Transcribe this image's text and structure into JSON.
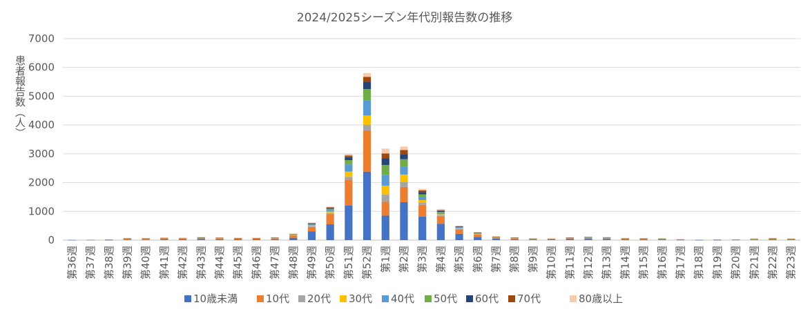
{
  "chart_data": {
    "type": "bar",
    "stacked": true,
    "title": "2024/2025シーズン年代別報告数の推移",
    "xlabel": "",
    "ylabel": "患者報告数（人）",
    "ylim": [
      0,
      7000
    ],
    "yticks": [
      0,
      1000,
      2000,
      3000,
      4000,
      5000,
      6000,
      7000
    ],
    "grid": true,
    "legend_position": "bottom",
    "categories": [
      "第36週",
      "第37週",
      "第38週",
      "第39週",
      "第40週",
      "第41週",
      "第42週",
      "第43週",
      "第44週",
      "第45週",
      "第46週",
      "第47週",
      "第48週",
      "第49週",
      "第50週",
      "第51週",
      "第52週",
      "第1週",
      "第2週",
      "第3週",
      "第4週",
      "第5週",
      "第6週",
      "第7週",
      "第8週",
      "第9週",
      "第10週",
      "第11週",
      "第12週",
      "第13週",
      "第14週",
      "第15週",
      "第16週",
      "第17週",
      "第18週",
      "第19週",
      "第20週",
      "第21週",
      "第22週",
      "第23週"
    ],
    "series": [
      {
        "name": "10歳未満",
        "color": "#4472C4",
        "values": [
          5,
          10,
          5,
          20,
          20,
          30,
          25,
          40,
          30,
          25,
          25,
          30,
          80,
          300,
          550,
          1200,
          2380,
          850,
          1320,
          820,
          570,
          220,
          110,
          50,
          30,
          20,
          20,
          35,
          45,
          40,
          25,
          25,
          20,
          10,
          5,
          5,
          10,
          15,
          25,
          15
        ]
      },
      {
        "name": "10代",
        "color": "#ED7D31",
        "values": [
          10,
          5,
          10,
          30,
          30,
          30,
          30,
          40,
          35,
          35,
          35,
          40,
          80,
          160,
          350,
          900,
          1430,
          480,
          530,
          410,
          260,
          150,
          90,
          40,
          35,
          20,
          20,
          30,
          40,
          30,
          25,
          20,
          20,
          15,
          10,
          10,
          10,
          15,
          20,
          20
        ]
      },
      {
        "name": "20代",
        "color": "#A5A5A5",
        "values": [
          0,
          0,
          0,
          5,
          5,
          5,
          5,
          5,
          5,
          5,
          5,
          5,
          10,
          20,
          40,
          100,
          200,
          250,
          180,
          80,
          30,
          20,
          10,
          10,
          5,
          5,
          5,
          5,
          5,
          5,
          5,
          5,
          5,
          0,
          0,
          0,
          0,
          5,
          5,
          5
        ]
      },
      {
        "name": "30代",
        "color": "#FFC000",
        "values": [
          2,
          0,
          2,
          5,
          5,
          5,
          5,
          5,
          5,
          5,
          5,
          5,
          15,
          30,
          50,
          180,
          320,
          310,
          250,
          80,
          40,
          20,
          15,
          5,
          5,
          5,
          5,
          5,
          5,
          10,
          5,
          5,
          5,
          2,
          0,
          0,
          2,
          5,
          5,
          5
        ]
      },
      {
        "name": "40代",
        "color": "#5B9BD5",
        "values": [
          0,
          0,
          2,
          5,
          5,
          5,
          5,
          5,
          5,
          5,
          5,
          5,
          15,
          30,
          60,
          250,
          520,
          380,
          270,
          110,
          40,
          20,
          15,
          5,
          5,
          5,
          0,
          5,
          5,
          5,
          5,
          5,
          5,
          2,
          0,
          2,
          2,
          5,
          5,
          5
        ]
      },
      {
        "name": "50代",
        "color": "#70AD47",
        "values": [
          0,
          0,
          2,
          3,
          3,
          5,
          3,
          5,
          5,
          3,
          3,
          5,
          10,
          20,
          40,
          150,
          400,
          340,
          260,
          90,
          40,
          20,
          10,
          5,
          5,
          3,
          3,
          5,
          5,
          5,
          3,
          3,
          3,
          0,
          0,
          2,
          2,
          3,
          5,
          3
        ]
      },
      {
        "name": "60代",
        "color": "#264478",
        "values": [
          0,
          0,
          0,
          2,
          2,
          3,
          2,
          3,
          3,
          2,
          2,
          3,
          5,
          20,
          30,
          100,
          250,
          230,
          180,
          80,
          30,
          20,
          10,
          5,
          5,
          2,
          2,
          5,
          5,
          3,
          2,
          2,
          2,
          0,
          0,
          0,
          0,
          2,
          3,
          2
        ]
      },
      {
        "name": "70代",
        "color": "#9E480E",
        "values": [
          0,
          0,
          0,
          2,
          2,
          2,
          2,
          2,
          2,
          2,
          2,
          3,
          3,
          15,
          20,
          60,
          170,
          170,
          140,
          60,
          30,
          15,
          10,
          5,
          5,
          2,
          2,
          5,
          5,
          3,
          2,
          2,
          2,
          2,
          0,
          0,
          0,
          2,
          2,
          2
        ]
      },
      {
        "name": "80歳以上",
        "color": "#F8CBAD",
        "values": [
          5,
          0,
          0,
          3,
          3,
          5,
          3,
          5,
          5,
          3,
          3,
          5,
          7,
          15,
          20,
          60,
          130,
          170,
          120,
          50,
          40,
          15,
          10,
          5,
          5,
          3,
          3,
          5,
          5,
          5,
          3,
          3,
          3,
          3,
          0,
          0,
          0,
          3,
          5,
          3
        ]
      }
    ]
  }
}
